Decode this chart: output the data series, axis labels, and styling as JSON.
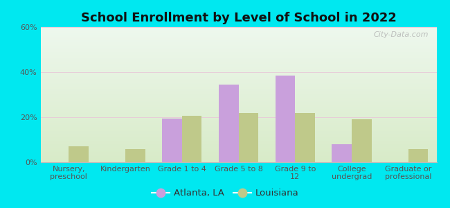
{
  "title": "School Enrollment by Level of School in 2022",
  "categories": [
    "Nursery,\npreschool",
    "Kindergarten",
    "Grade 1 to 4",
    "Grade 5 to 8",
    "Grade 9 to\n12",
    "College\nundergrad",
    "Graduate or\nprofessional"
  ],
  "atlanta_values": [
    0,
    0,
    19.5,
    34.5,
    38.5,
    8.0,
    0
  ],
  "louisiana_values": [
    7.0,
    6.0,
    20.5,
    22.0,
    22.0,
    19.0,
    6.0
  ],
  "atlanta_color": "#c9a0dc",
  "louisiana_color": "#bfc98a",
  "background_outer": "#00e8f0",
  "background_inner_top": "#eef8ee",
  "background_inner_bottom": "#d8ebc8",
  "ylim": [
    0,
    60
  ],
  "yticks": [
    0,
    20,
    40,
    60
  ],
  "title_fontsize": 13,
  "tick_fontsize": 8,
  "legend_fontsize": 9.5,
  "watermark_text": "City-Data.com",
  "bar_width": 0.35
}
